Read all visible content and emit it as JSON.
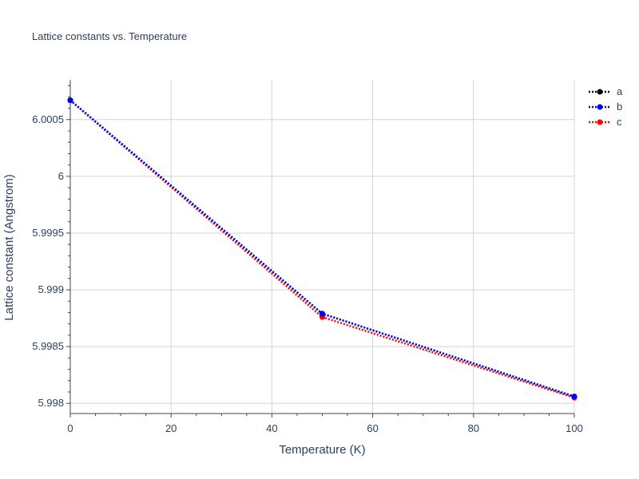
{
  "chart_data": {
    "type": "line",
    "title": "Lattice constants vs. Temperature",
    "xlabel": "Temperature (K)",
    "ylabel": "Lattice constant (Angstrom)",
    "xlim": [
      0,
      100
    ],
    "ylim": [
      5.99791,
      6.00085
    ],
    "x_ticks": [
      0,
      20,
      40,
      60,
      80,
      100
    ],
    "x_tick_labels": [
      "0",
      "20",
      "40",
      "60",
      "80",
      "100"
    ],
    "y_ticks": [
      5.998,
      5.9985,
      5.999,
      5.9995,
      6.0,
      6.0005
    ],
    "y_tick_labels": [
      "5.998",
      "5.9985",
      "5.999",
      "5.9995",
      "6",
      "6.0005"
    ],
    "grid": true,
    "legend_position": "top-right",
    "x": [
      0,
      50,
      100
    ],
    "series": [
      {
        "name": "a",
        "color": "#000000",
        "values": [
          6.00067,
          5.99879,
          5.99806
        ]
      },
      {
        "name": "b",
        "color": "#0000ff",
        "values": [
          6.00067,
          5.99879,
          5.99806
        ]
      },
      {
        "name": "c",
        "color": "#ff0000",
        "values": [
          6.00067,
          5.99876,
          5.99805
        ]
      }
    ]
  }
}
